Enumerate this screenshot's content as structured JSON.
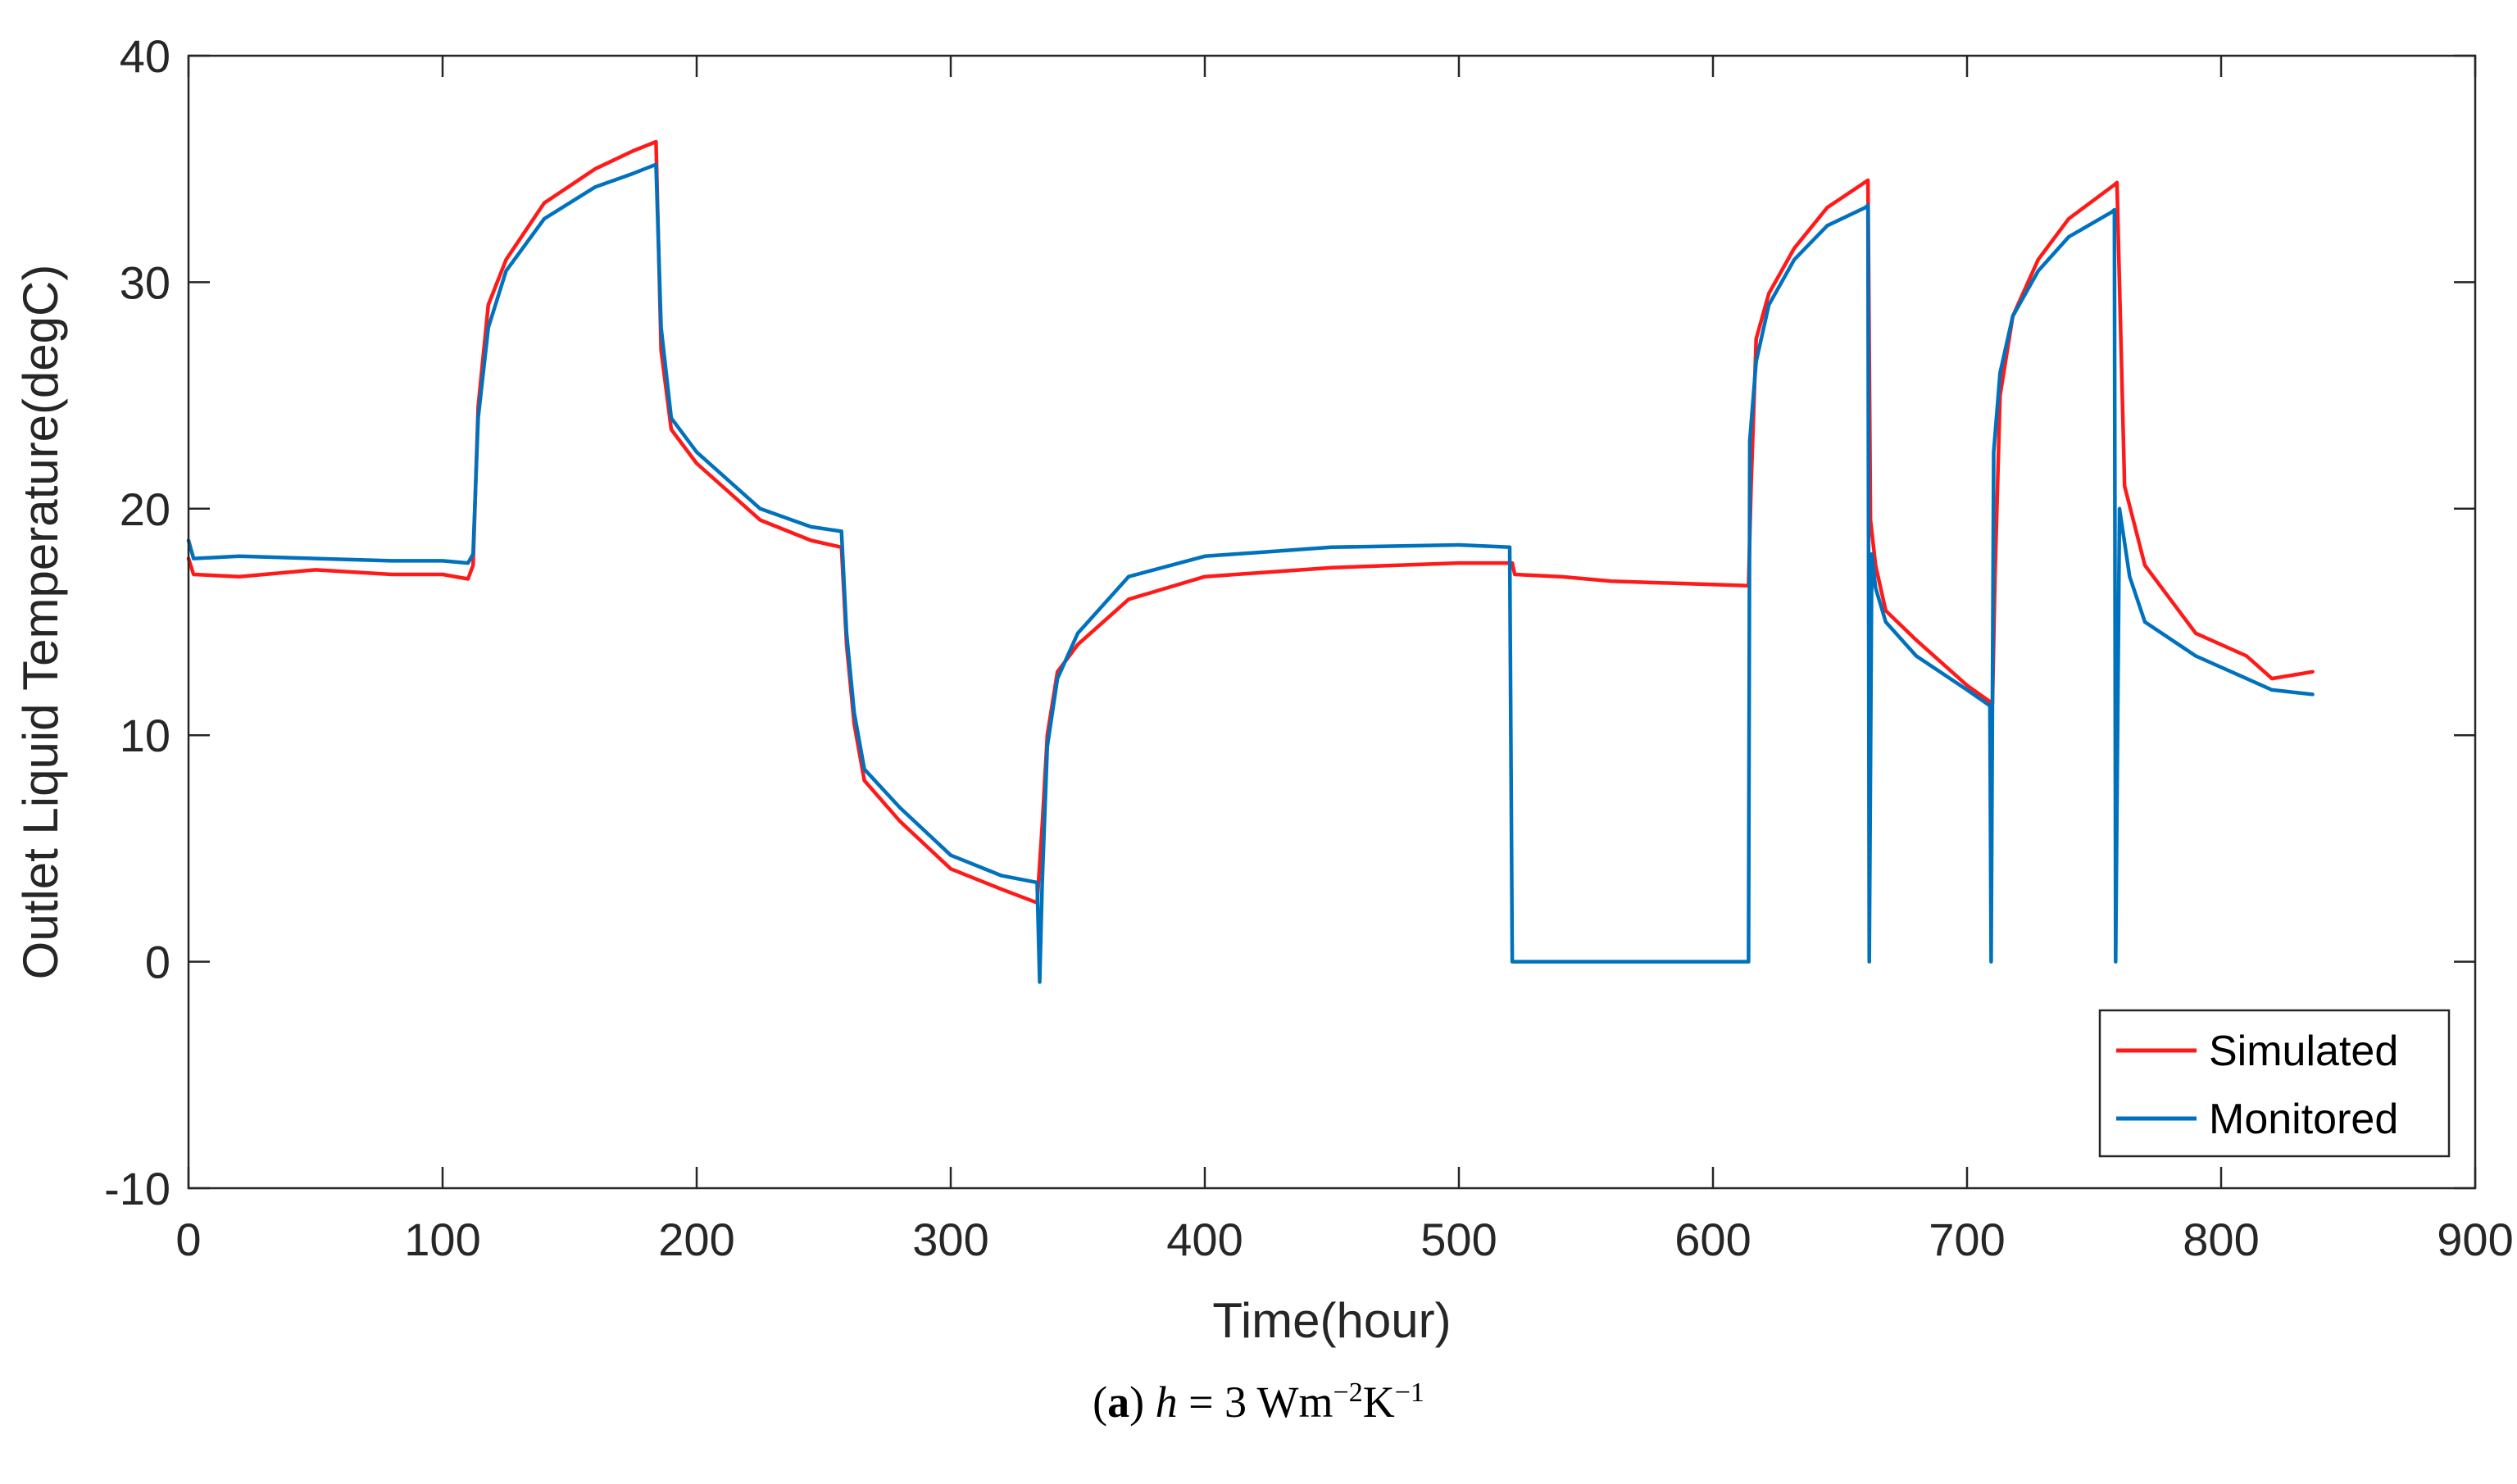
{
  "chart_data": {
    "type": "line",
    "xlabel": "Time(hour)",
    "ylabel": "Outlet Liquid Temperature(degC)",
    "xlim": [
      0,
      900
    ],
    "ylim": [
      -10,
      40
    ],
    "xticks": [
      0,
      100,
      200,
      300,
      400,
      500,
      600,
      700,
      800,
      900
    ],
    "yticks": [
      -10,
      0,
      10,
      20,
      30,
      40
    ],
    "legend_position": "bottom-right",
    "series": [
      {
        "name": "Simulated",
        "color": "#ff1a1a",
        "x": [
          0,
          2,
          20,
          50,
          80,
          100,
          110,
          112,
          114,
          118,
          125,
          140,
          160,
          175,
          184,
          186,
          190,
          200,
          225,
          245,
          257,
          259,
          262,
          266,
          280,
          300,
          320,
          334,
          336,
          338,
          342,
          350,
          370,
          400,
          450,
          500,
          521,
          522,
          540,
          560,
          614,
          615,
          617,
          622,
          632,
          645,
          661,
          662,
          664,
          668,
          680,
          700,
          710,
          711,
          713,
          718,
          728,
          740,
          758,
          759,
          762,
          770,
          790,
          810,
          820,
          836
        ],
        "y": [
          17.8,
          17.1,
          17.0,
          17.3,
          17.1,
          17.1,
          16.9,
          17.5,
          24.5,
          29.0,
          31.0,
          33.5,
          35.0,
          35.8,
          36.2,
          27.0,
          23.5,
          22.0,
          19.5,
          18.6,
          18.3,
          14.0,
          10.5,
          8.0,
          6.2,
          4.1,
          3.2,
          2.6,
          6.0,
          10.0,
          12.8,
          14.0,
          16.0,
          17.0,
          17.4,
          17.6,
          17.6,
          17.1,
          17.0,
          16.8,
          16.6,
          21.0,
          27.5,
          29.5,
          31.5,
          33.3,
          34.5,
          19.5,
          17.5,
          15.5,
          14.2,
          12.2,
          11.4,
          17.0,
          25.0,
          28.5,
          31.0,
          32.8,
          34.3,
          34.4,
          21.0,
          17.5,
          14.5,
          13.5,
          12.5,
          12.8
        ]
      },
      {
        "name": "Monitored",
        "color": "#0072bd",
        "x": [
          0,
          2,
          20,
          50,
          80,
          100,
          110,
          112,
          114,
          118,
          125,
          140,
          160,
          175,
          184,
          186,
          190,
          200,
          225,
          245,
          257,
          259,
          262,
          266,
          280,
          300,
          320,
          334,
          335,
          336,
          338,
          342,
          350,
          370,
          400,
          450,
          500,
          520,
          521,
          614,
          614.5,
          617,
          622,
          632,
          645,
          660,
          661,
          661.5,
          662.5,
          664,
          668,
          680,
          700,
          709,
          709.5,
          710.5,
          713,
          718,
          728,
          740,
          757,
          758,
          758.5,
          760,
          764,
          770,
          790,
          810,
          820,
          836
        ],
        "y": [
          18.6,
          17.8,
          17.9,
          17.8,
          17.7,
          17.7,
          17.6,
          18.0,
          24.0,
          28.0,
          30.5,
          32.8,
          34.2,
          34.8,
          35.2,
          28.0,
          24.0,
          22.5,
          20.0,
          19.2,
          19.0,
          14.5,
          11.0,
          8.5,
          6.8,
          4.7,
          3.8,
          3.5,
          -0.9,
          3.5,
          9.5,
          12.5,
          14.5,
          17.0,
          17.9,
          18.3,
          18.4,
          18.3,
          0.0,
          0.0,
          23.0,
          26.5,
          29.0,
          31.0,
          32.5,
          33.3,
          33.4,
          0.0,
          18.0,
          16.5,
          15.0,
          13.5,
          12.0,
          11.3,
          0.0,
          22.5,
          26.0,
          28.5,
          30.5,
          32.0,
          33.1,
          33.2,
          0.0,
          20.0,
          17.0,
          15.0,
          13.5,
          12.5,
          12.0,
          11.8
        ]
      }
    ]
  },
  "caption": {
    "label": "a",
    "variable": "h",
    "equals": " = 3 Wm",
    "exp1": "−2",
    "unit2": "K",
    "exp2": "−1"
  }
}
